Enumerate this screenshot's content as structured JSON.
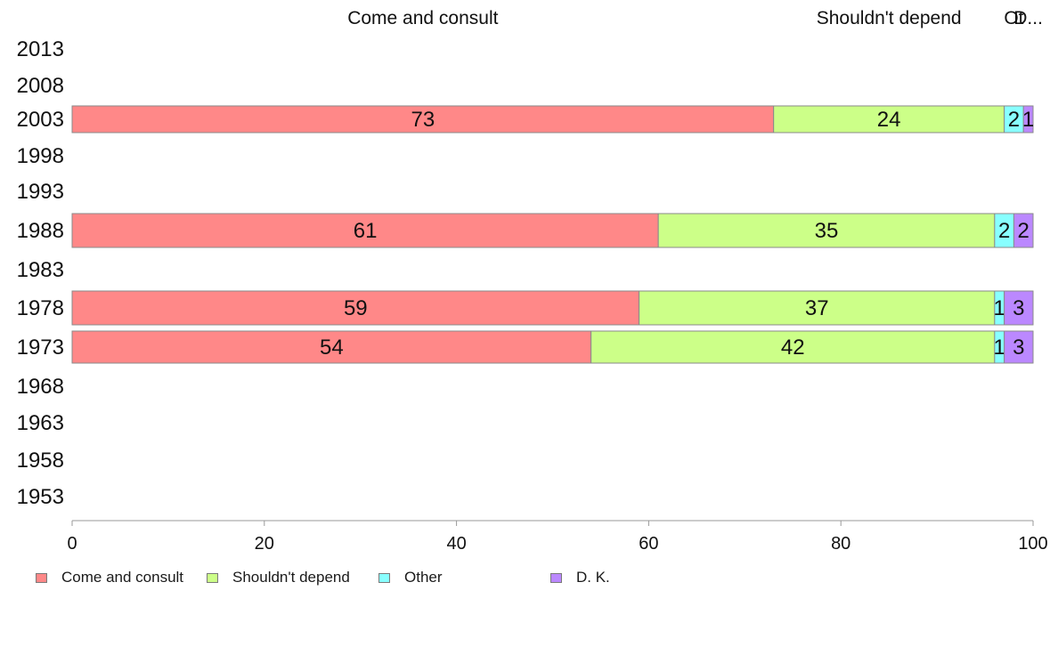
{
  "chart_data": {
    "type": "bar",
    "orientation": "horizontal",
    "stacked": true,
    "categories": [
      "2013",
      "2008",
      "2003",
      "1998",
      "1993",
      "1988",
      "1983",
      "1978",
      "1973",
      "1968",
      "1963",
      "1958",
      "1953"
    ],
    "series": [
      {
        "name": "Come and consult",
        "color": "#ff8888",
        "values": [
          null,
          null,
          73,
          null,
          null,
          61,
          null,
          59,
          54,
          null,
          null,
          null,
          null
        ]
      },
      {
        "name": "Shouldn't depend",
        "color": "#ccff88",
        "values": [
          null,
          null,
          24,
          null,
          null,
          35,
          null,
          37,
          42,
          null,
          null,
          null,
          null
        ]
      },
      {
        "name": "Other",
        "color": "#88ffff",
        "values": [
          null,
          null,
          2,
          null,
          null,
          2,
          null,
          1,
          1,
          null,
          null,
          null,
          null
        ]
      },
      {
        "name": "D. K.",
        "color": "#bb88ff",
        "values": [
          null,
          null,
          1,
          null,
          null,
          2,
          null,
          3,
          3,
          null,
          null,
          null,
          null
        ]
      }
    ],
    "top_labels": [
      "Come and consult",
      "Shouldn't depend",
      "Ot",
      "D..."
    ],
    "xlim": [
      0,
      100
    ],
    "xticks": [
      0,
      20,
      40,
      60,
      80,
      100
    ],
    "grid": false,
    "legend_position": "bottom",
    "title": "",
    "xlabel": "",
    "ylabel": ""
  }
}
